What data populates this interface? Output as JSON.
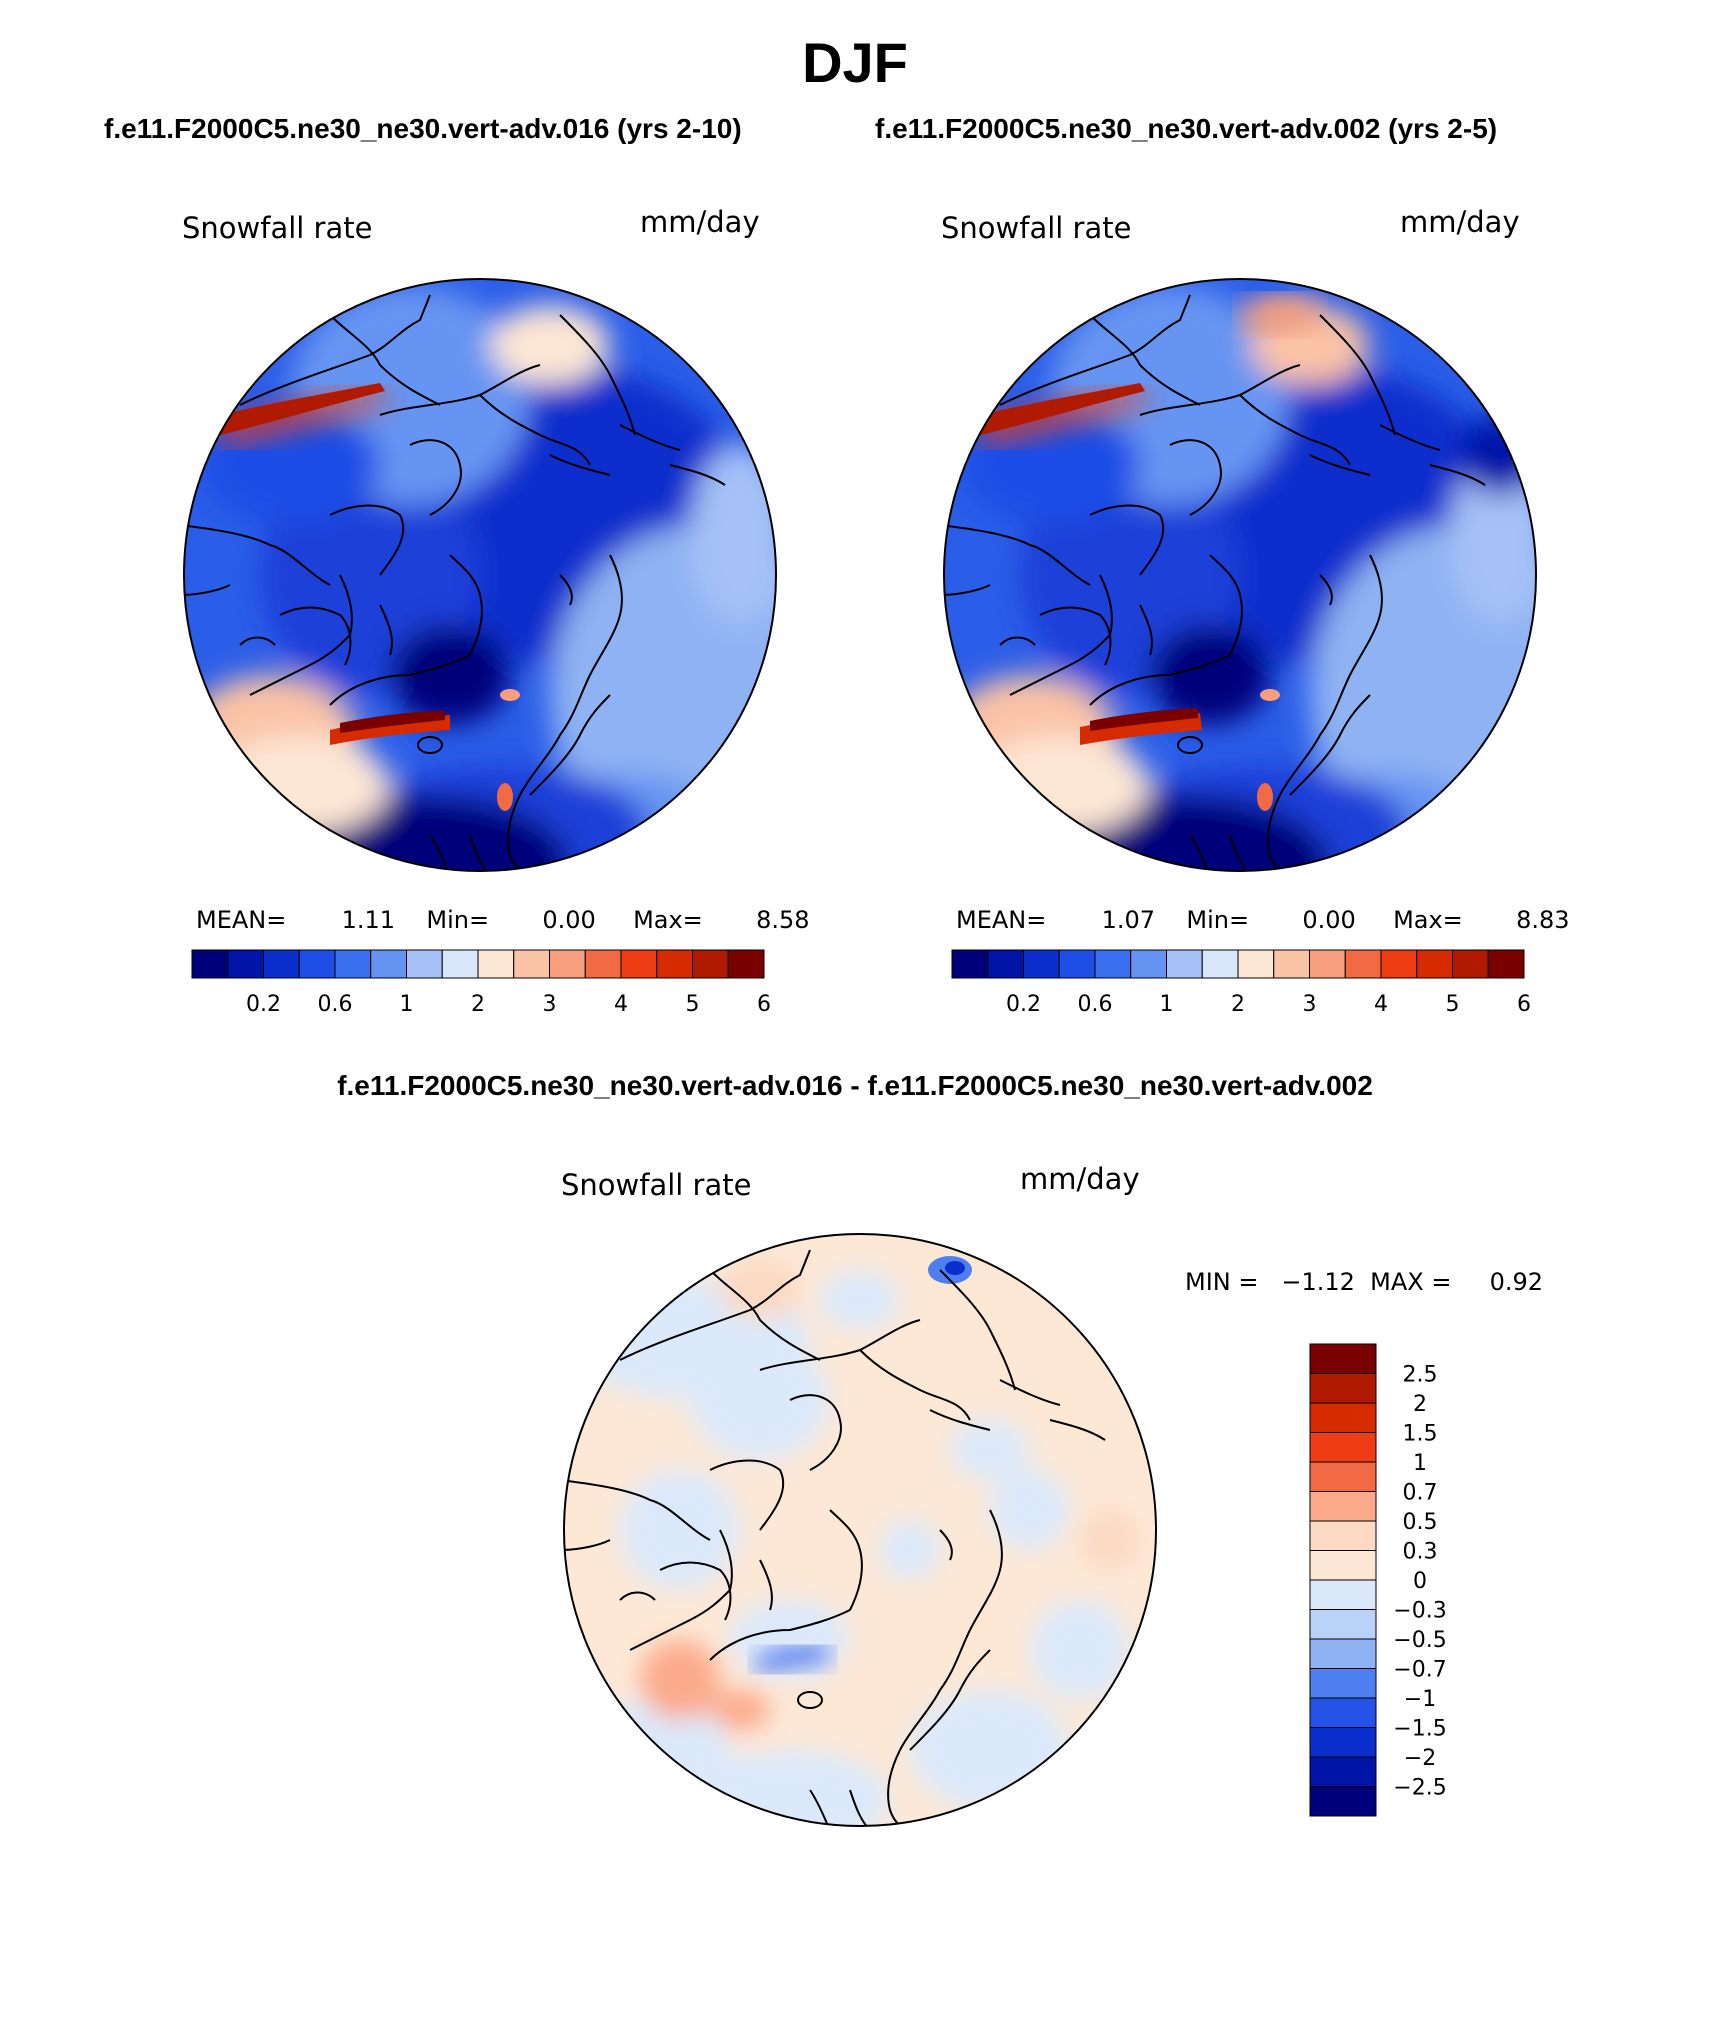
{
  "title": "DJF",
  "panels": [
    {
      "case_title": "f.e11.F2000C5.ne30_ne30.vert-adv.016 (yrs 2-10)",
      "variable": "Snowfall rate",
      "units": "mm/day",
      "stats": {
        "mean_label": "MEAN=",
        "mean": "1.11",
        "min_label": "Min=",
        "min": "0.00",
        "max_label": "Max=",
        "max": "8.58"
      }
    },
    {
      "case_title": "f.e11.F2000C5.ne30_ne30.vert-adv.002 (yrs 2-5)",
      "variable": "Snowfall rate",
      "units": "mm/day",
      "stats": {
        "mean_label": "MEAN=",
        "mean": "1.07",
        "min_label": "Min=",
        "min": "0.00",
        "max_label": "Max=",
        "max": "8.83"
      }
    }
  ],
  "diff_panel": {
    "title": "f.e11.F2000C5.ne30_ne30.vert-adv.016 - f.e11.F2000C5.ne30_ne30.vert-adv.002",
    "variable": "Snowfall rate",
    "units": "mm/day",
    "minmax_text": "MIN =   −1.12  MAX =     0.92"
  },
  "chart_data": [
    {
      "type": "heatmap",
      "projection": "north-polar-stereographic",
      "title": "Snowfall rate",
      "units": "mm/day",
      "mean": 1.11,
      "min": 0.0,
      "max": 8.58,
      "colorbar_ticks": [
        "0.2",
        "0.6",
        "1",
        "2",
        "3",
        "4",
        "5",
        "6"
      ],
      "colorbar_colors": [
        "#00007a",
        "#0015a8",
        "#0a2fcc",
        "#1f4ee6",
        "#3a6ff0",
        "#6694f2",
        "#a5c1f7",
        "#d8e7fb",
        "#fde6d4",
        "#fbc3a6",
        "#f79f7c",
        "#f26a44",
        "#ee3d14",
        "#d62a00",
        "#b01a00",
        "#7a0000"
      ]
    },
    {
      "type": "heatmap",
      "projection": "north-polar-stereographic",
      "title": "Snowfall rate",
      "units": "mm/day",
      "mean": 1.07,
      "min": 0.0,
      "max": 8.83,
      "colorbar_ticks": [
        "0.2",
        "0.6",
        "1",
        "2",
        "3",
        "4",
        "5",
        "6"
      ],
      "colorbar_colors": [
        "#00007a",
        "#0015a8",
        "#0a2fcc",
        "#1f4ee6",
        "#3a6ff0",
        "#6694f2",
        "#a5c1f7",
        "#d8e7fb",
        "#fde6d4",
        "#fbc3a6",
        "#f79f7c",
        "#f26a44",
        "#ee3d14",
        "#d62a00",
        "#b01a00",
        "#7a0000"
      ]
    },
    {
      "type": "heatmap",
      "projection": "north-polar-stereographic",
      "title": "Snowfall rate",
      "units": "mm/day",
      "min": -1.12,
      "max": 0.92,
      "colorbar_ticks": [
        "2.5",
        "2",
        "1.5",
        "1",
        "0.7",
        "0.5",
        "0.3",
        "0",
        "−0.3",
        "−0.5",
        "−0.7",
        "−1",
        "−1.5",
        "−2",
        "−2.5"
      ],
      "colorbar_colors": [
        "#7a0000",
        "#b01a00",
        "#d62a00",
        "#ee3d14",
        "#f26a44",
        "#fbab8c",
        "#fcd9c2",
        "#fde8d6",
        "#dce9fb",
        "#bad2f8",
        "#8fb2f3",
        "#4d7ff0",
        "#2553e8",
        "#0a2fcc",
        "#0015a8",
        "#00007a"
      ]
    }
  ]
}
